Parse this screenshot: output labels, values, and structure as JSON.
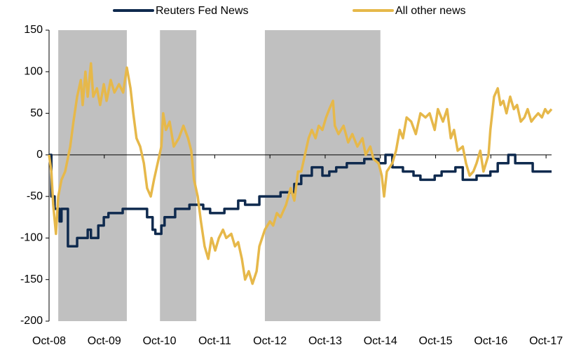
{
  "chart_data": {
    "type": "line",
    "xlim": [
      0,
      109.2
    ],
    "xticks": [
      {
        "value": 0,
        "label": "Oct-08"
      },
      {
        "value": 12,
        "label": "Oct-09"
      },
      {
        "value": 24,
        "label": "Oct-10"
      },
      {
        "value": 36,
        "label": "Oct-11"
      },
      {
        "value": 48,
        "label": "Oct-12"
      },
      {
        "value": 60,
        "label": "Oct-13"
      },
      {
        "value": 72,
        "label": "Oct-14"
      },
      {
        "value": 84,
        "label": "Oct-15"
      },
      {
        "value": 96,
        "label": "Oct-16"
      },
      {
        "value": 108,
        "label": "Oct-17"
      }
    ],
    "ylim": [
      -200,
      150
    ],
    "yticks": [
      -200,
      -150,
      -100,
      -50,
      0,
      50,
      100,
      150
    ],
    "shaded": [
      [
        2.0,
        16.9
      ],
      [
        24.1,
        32.0
      ],
      [
        46.9,
        72.0
      ]
    ],
    "shade_color": "#c0c0c0",
    "legend": "top",
    "series": [
      {
        "name": "Reuters Fed News",
        "color": "#0f2a4e",
        "step": true,
        "x": [
          0,
          0.5,
          1.2,
          2.3,
          2.7,
          3.5,
          4.1,
          6.1,
          7.6,
          8.4,
          9.1,
          10.7,
          11.9,
          12.9,
          16,
          20.6,
          21.3,
          22.5,
          23.1,
          24.4,
          25.1,
          27.4,
          30.5,
          32.7,
          33.5,
          35,
          38.1,
          41.1,
          42.6,
          45.7,
          50.3,
          53.3,
          54.8,
          57.1,
          59.4,
          60.9,
          62.4,
          64.7,
          68.5,
          71.6,
          73.1,
          74.6,
          76.9,
          79.2,
          80.7,
          83.8,
          85.3,
          88.3,
          89.9,
          92.9,
          95.9,
          97.5,
          99.8,
          101.3,
          103.6,
          105.1,
          107.4,
          109.2
        ],
        "values": [
          0,
          -50,
          -65,
          -80,
          -65,
          -65,
          -110,
          -100,
          -100,
          -90,
          -100,
          -85,
          -75,
          -70,
          -65,
          -65,
          -75,
          -90,
          -95,
          -85,
          -75,
          -65,
          -60,
          -60,
          -65,
          -70,
          -65,
          -55,
          -60,
          -50,
          -45,
          -35,
          -25,
          -15,
          -25,
          -20,
          -15,
          -10,
          -5,
          -10,
          0,
          -15,
          -20,
          -25,
          -30,
          -25,
          -20,
          -15,
          -30,
          -25,
          -20,
          -10,
          0,
          -10,
          -10,
          -20,
          -20,
          -20
        ]
      },
      {
        "name": "All other news",
        "color": "#e6b84a",
        "step": false,
        "x": [
          0,
          0.5,
          0.9,
          1.5,
          2.0,
          2.7,
          3.5,
          4.6,
          5.3,
          6.1,
          6.9,
          7.3,
          7.9,
          8.4,
          9.1,
          9.6,
          10.4,
          11.1,
          11.9,
          12.5,
          13.4,
          14.2,
          15.2,
          16.1,
          16.9,
          17.7,
          18.3,
          19.0,
          19.8,
          20.6,
          21.3,
          22.1,
          22.8,
          23.6,
          24.4,
          24.8,
          25.4,
          26.2,
          27.1,
          28.2,
          29.2,
          30.2,
          30.9,
          31.5,
          32.3,
          33.0,
          33.8,
          34.6,
          35.3,
          36.1,
          36.9,
          37.8,
          38.5,
          39.6,
          40.4,
          41.1,
          41.9,
          42.6,
          43.4,
          44.2,
          45.1,
          45.7,
          46.9,
          48.0,
          48.7,
          49.5,
          50.3,
          51.5,
          52.5,
          53.3,
          54.1,
          54.8,
          55.6,
          56.4,
          57.1,
          57.9,
          58.6,
          59.4,
          60.2,
          60.9,
          61.7,
          62.1,
          62.9,
          64.0,
          65.0,
          65.9,
          67.0,
          68.1,
          68.8,
          69.8,
          70.5,
          71.6,
          72.3,
          72.8,
          73.4,
          74.6,
          75.4,
          76.2,
          76.9,
          77.7,
          78.7,
          79.7,
          80.7,
          81.8,
          82.7,
          83.8,
          84.5,
          85.6,
          86.5,
          87.3,
          88.0,
          88.8,
          89.9,
          90.6,
          91.4,
          92.2,
          92.9,
          93.7,
          94.4,
          95.5,
          95.9,
          96.7,
          97.5,
          98.1,
          98.7,
          99.4,
          100.2,
          101.0,
          101.7,
          102.5,
          103.3,
          104.0,
          104.8,
          105.5,
          106.3,
          107.1,
          107.8,
          108.4,
          109.2
        ],
        "values": [
          0,
          -20,
          -60,
          -95,
          -50,
          -30,
          -20,
          10,
          40,
          70,
          90,
          60,
          100,
          70,
          110,
          70,
          80,
          60,
          85,
          65,
          90,
          75,
          85,
          75,
          105,
          80,
          50,
          20,
          10,
          -10,
          -40,
          -50,
          -30,
          -10,
          10,
          50,
          30,
          40,
          10,
          20,
          35,
          20,
          5,
          -30,
          -50,
          -80,
          -110,
          -125,
          -100,
          -115,
          -100,
          -90,
          -100,
          -95,
          -110,
          -105,
          -125,
          -150,
          -140,
          -155,
          -140,
          -110,
          -90,
          -80,
          -85,
          -70,
          -75,
          -60,
          -40,
          -55,
          -20,
          -20,
          0,
          20,
          30,
          20,
          35,
          30,
          45,
          55,
          65,
          35,
          25,
          35,
          15,
          25,
          10,
          20,
          0,
          10,
          -5,
          -10,
          -25,
          -50,
          -20,
          -10,
          5,
          30,
          20,
          45,
          40,
          25,
          50,
          45,
          50,
          30,
          55,
          40,
          55,
          20,
          30,
          5,
          10,
          -10,
          -25,
          -20,
          -10,
          5,
          -20,
          0,
          30,
          70,
          80,
          60,
          65,
          50,
          70,
          55,
          60,
          40,
          45,
          55,
          40,
          45,
          50,
          45,
          55,
          50,
          55
        ]
      }
    ]
  }
}
